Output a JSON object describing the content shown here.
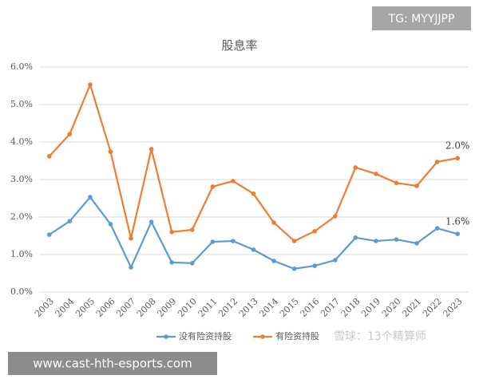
{
  "chart_data": {
    "type": "line",
    "title": "股息率",
    "categories": [
      "2003",
      "2004",
      "2005",
      "2006",
      "2007",
      "2008",
      "2009",
      "2010",
      "2011",
      "2012",
      "2013",
      "2014",
      "2015",
      "2016",
      "2017",
      "2018",
      "2019",
      "2020",
      "2021",
      "2022",
      "2023"
    ],
    "series": [
      {
        "name": "没有险资持股",
        "color": "#5b9bd5",
        "values": [
          1.53,
          1.89,
          2.53,
          1.81,
          0.66,
          1.87,
          0.79,
          0.77,
          1.34,
          1.36,
          1.13,
          0.83,
          0.62,
          0.7,
          0.85,
          1.45,
          1.36,
          1.4,
          1.3,
          1.7,
          1.55
        ]
      },
      {
        "name": "有险资持股",
        "color": "#ed7d31",
        "values": [
          3.62,
          4.21,
          5.53,
          3.74,
          1.43,
          3.81,
          1.6,
          1.66,
          2.81,
          2.96,
          2.62,
          1.85,
          1.36,
          1.62,
          2.02,
          3.32,
          3.15,
          2.91,
          2.83,
          3.47,
          3.57
        ]
      }
    ],
    "annotations": [
      "1.6%",
      "2.0%"
    ],
    "ylim": [
      0,
      6
    ],
    "yticks": [
      {
        "value": 0,
        "label": "0.0%"
      },
      {
        "value": 1,
        "label": "1.0%"
      },
      {
        "value": 2,
        "label": "2.0%"
      },
      {
        "value": 3,
        "label": "3.0%"
      },
      {
        "value": 4,
        "label": "4.0%"
      },
      {
        "value": 5,
        "label": "5.0%"
      },
      {
        "value": 6,
        "label": "6.0%"
      }
    ],
    "grid": true,
    "legend": "bottom"
  },
  "overlays": {
    "tag": "TG: MYYJJPP",
    "site": "www.cast-hth-esports.com",
    "watermark": "雪球：13个精算师"
  }
}
